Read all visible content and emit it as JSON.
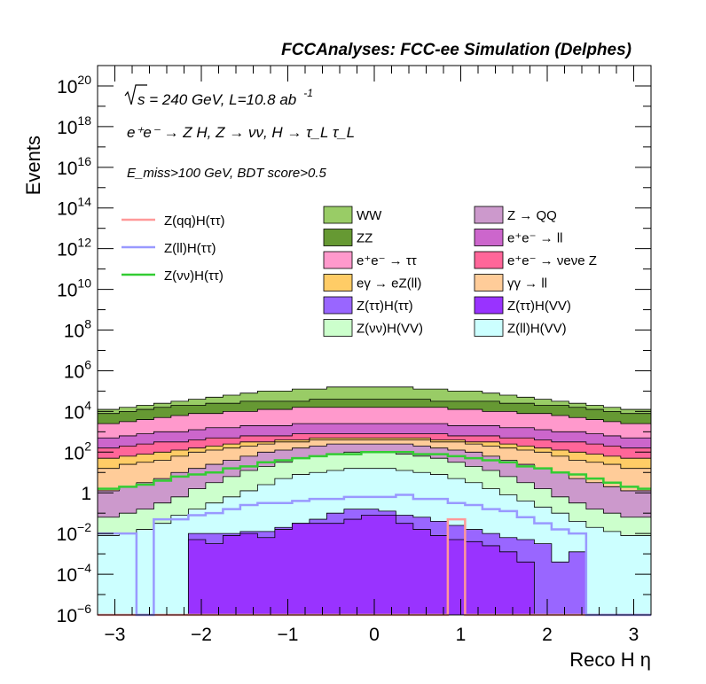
{
  "header": {
    "title": "FCCAnalyses: FCC-ee Simulation (Delphes)"
  },
  "annotations": {
    "line1_sqrt": "s",
    "line1_rest": " = 240 GeV, L=10.8 ab",
    "line1_sup": "-1",
    "line2": "e⁺e⁻ → Z H, Z → νν, H → τ_L τ_L",
    "line3": "E_miss>100 GeV, BDT score>0.5"
  },
  "colors": {
    "WW": "#99cc66",
    "ZZ": "#669933",
    "eeTauTau": "#ff99cc",
    "egamma": "#ffcc66",
    "ZtautauHtautau": "#9966ff",
    "ZnunuHVV": "#ccffcc",
    "ZQQ": "#cc99cc",
    "eell": "#cc66cc",
    "eenunuZ": "#ff6699",
    "gammagammall": "#ffcc99",
    "ZtautauHVV": "#9933ff",
    "ZllHVV": "#ccffff",
    "sig_qq": "#ff9999",
    "sig_ll": "#9999ff",
    "sig_nunu": "#33cc33"
  },
  "chart_data": {
    "type": "area",
    "title": "FCCAnalyses: FCC-ee Simulation (Delphes)",
    "xlabel": "Reco H η",
    "ylabel": "Events",
    "xlim": [
      -3.2,
      3.2
    ],
    "ylim": [
      1e-06,
      1e+21
    ],
    "yscale": "log",
    "grid": false,
    "legend": "top",
    "bin_edges": [
      -3.2,
      -2.95,
      -2.75,
      -2.55,
      -2.35,
      -2.15,
      -1.95,
      -1.75,
      -1.55,
      -1.35,
      -1.15,
      -0.95,
      -0.75,
      -0.55,
      -0.35,
      -0.15,
      0.05,
      0.25,
      0.45,
      0.65,
      0.85,
      1.05,
      1.25,
      1.45,
      1.65,
      1.85,
      2.05,
      2.25,
      2.45,
      2.65,
      2.85,
      3.05,
      3.2
    ],
    "x_ticks": [
      -3,
      -2,
      -1,
      0,
      1,
      2,
      3
    ],
    "x_tick_labels": [
      "−3",
      "−2",
      "−1",
      "0",
      "1",
      "2",
      "3"
    ],
    "y_ticks": [
      "1e-6",
      "1e-4",
      "1e-2",
      "1",
      "1e2",
      "1e4",
      "1e6",
      "1e8",
      "1e10",
      "1e12",
      "1e14",
      "1e16",
      "1e18",
      "1e20"
    ],
    "y_tick_labels": [
      {
        "base": "10",
        "exp": "−6"
      },
      {
        "base": "10",
        "exp": "−4"
      },
      {
        "base": "10",
        "exp": "−2"
      },
      {
        "base": "1",
        "exp": ""
      },
      {
        "base": "10",
        "exp": "2"
      },
      {
        "base": "10",
        "exp": "4"
      },
      {
        "base": "10",
        "exp": "6"
      },
      {
        "base": "10",
        "exp": "8"
      },
      {
        "base": "10",
        "exp": "10"
      },
      {
        "base": "10",
        "exp": "12"
      },
      {
        "base": "10",
        "exp": "14"
      },
      {
        "base": "10",
        "exp": "16"
      },
      {
        "base": "10",
        "exp": "18"
      },
      {
        "base": "10",
        "exp": "20"
      }
    ],
    "stack_order_bottom_to_top": [
      "Z(ττ)H(VV)",
      "Z(ττ)H(ττ)",
      "Z(ll)H(VV)",
      "Z(νν)H(VV)",
      "Z → QQ",
      "γγ → ll",
      "eγ → eZ(ll)",
      "e⁺e⁻ → νeνe Z",
      "e⁺e⁻ → ll",
      "e⁺e⁻ → ττ",
      "ZZ",
      "WW"
    ],
    "stack_cumulative_log10": [
      {
        "name": "Z(ττ)H(VV)",
        "color": "#9933ff",
        "values": [
          -6,
          -6,
          -6,
          -6,
          -6,
          -2.3,
          -2.5,
          -2.1,
          -2,
          -2.2,
          -1.8,
          -1.5,
          -1.5,
          -1.5,
          -1.3,
          -1.1,
          -1.1,
          -1.5,
          -1.8,
          -2.1,
          -2.3,
          -2.4,
          -2.6,
          -2.9,
          -3.4,
          -6,
          -6,
          -6,
          -6,
          -6,
          -6,
          -6
        ]
      },
      {
        "name": "Z(ττ)H(ττ)",
        "color": "#9966ff",
        "values": [
          -6,
          -6,
          -6,
          -6,
          -6,
          -2,
          -2,
          -2,
          -1.9,
          -1.9,
          -1.7,
          -1.5,
          -1.3,
          -1,
          -0.8,
          -0.8,
          -0.9,
          -1.1,
          -1.2,
          -1.4,
          -1.6,
          -1.8,
          -2,
          -2.2,
          -2.3,
          -2.5,
          -3.4,
          -2.9,
          -6,
          -6,
          -6,
          -6
        ]
      },
      {
        "name": "Z(ll)H(VV)",
        "color": "#ccffff",
        "values": [
          -2.1,
          -2,
          -1.8,
          -1.5,
          -1.1,
          -0.8,
          -0.5,
          -0.2,
          0.1,
          0.4,
          0.7,
          0.9,
          1,
          1.1,
          1.2,
          1.2,
          1.2,
          1.1,
          1,
          0.9,
          0.7,
          0.5,
          0.2,
          -0.1,
          -0.4,
          -0.7,
          -1,
          -1.4,
          -1.7,
          -1.9,
          -2.1,
          -2.1
        ]
      },
      {
        "name": "Z(νν)H(VV)",
        "color": "#ccffcc",
        "values": [
          -1.2,
          -1,
          -0.8,
          -0.5,
          -0.2,
          0.2,
          0.5,
          0.8,
          1.1,
          1.3,
          1.5,
          1.7,
          1.8,
          1.9,
          2,
          2,
          2,
          1.9,
          1.8,
          1.7,
          1.5,
          1.3,
          1.1,
          0.8,
          0.5,
          0.2,
          -0.2,
          -0.5,
          -0.8,
          -1,
          -1.2,
          -1.2
        ]
      },
      {
        "name": "Z → QQ",
        "color": "#cc99cc",
        "values": [
          0.1,
          0.3,
          0.5,
          0.7,
          1,
          1.2,
          1.4,
          1.6,
          1.8,
          2,
          2.1,
          2.2,
          2.3,
          2.4,
          2.4,
          2.4,
          2.4,
          2.4,
          2.3,
          2.2,
          2.1,
          2,
          1.8,
          1.6,
          1.4,
          1.2,
          1,
          0.7,
          0.5,
          0.3,
          0.1,
          0.1
        ]
      },
      {
        "name": "γγ → ll",
        "color": "#ffcc99",
        "values": [
          1.2,
          1.4,
          1.5,
          1.6,
          1.8,
          2,
          2.1,
          2.2,
          2.3,
          2.4,
          2.5,
          2.5,
          2.6,
          2.6,
          2.6,
          2.6,
          2.6,
          2.6,
          2.6,
          2.5,
          2.5,
          2.4,
          2.3,
          2.2,
          2.1,
          2,
          1.8,
          1.6,
          1.5,
          1.4,
          1.2,
          1.2
        ]
      },
      {
        "name": "eγ → eZ(ll)",
        "color": "#ffcc66",
        "values": [
          1.7,
          1.8,
          1.9,
          2,
          2.1,
          2.2,
          2.3,
          2.4,
          2.5,
          2.5,
          2.6,
          2.6,
          2.7,
          2.7,
          2.7,
          2.7,
          2.7,
          2.7,
          2.7,
          2.6,
          2.6,
          2.5,
          2.5,
          2.4,
          2.3,
          2.2,
          2.1,
          2,
          1.9,
          1.8,
          1.7,
          1.7
        ]
      },
      {
        "name": "e⁺e⁻ → νeνe Z",
        "color": "#ff6699",
        "values": [
          2.2,
          2.3,
          2.4,
          2.5,
          2.5,
          2.6,
          2.7,
          2.7,
          2.8,
          2.8,
          2.8,
          2.9,
          2.9,
          2.9,
          2.9,
          2.9,
          2.9,
          2.9,
          2.9,
          2.9,
          2.8,
          2.8,
          2.8,
          2.7,
          2.7,
          2.6,
          2.5,
          2.5,
          2.4,
          2.3,
          2.2,
          2.2
        ]
      },
      {
        "name": "e⁺e⁻ → ll",
        "color": "#cc66cc",
        "values": [
          2.7,
          2.8,
          2.9,
          3,
          3,
          3.1,
          3.2,
          3.2,
          3.3,
          3.3,
          3.3,
          3.4,
          3.4,
          3.4,
          3.4,
          3.4,
          3.4,
          3.4,
          3.4,
          3.4,
          3.3,
          3.3,
          3.3,
          3.2,
          3.2,
          3.1,
          3,
          3,
          2.9,
          2.8,
          2.7,
          2.7
        ]
      },
      {
        "name": "e⁺e⁻ → ττ",
        "color": "#ff99cc",
        "values": [
          3.4,
          3.5,
          3.6,
          3.7,
          3.8,
          3.9,
          3.9,
          4,
          4,
          4.1,
          4.1,
          4.2,
          4.2,
          4.2,
          4.2,
          4.2,
          4.2,
          4.2,
          4.2,
          4.2,
          4.1,
          4.1,
          4,
          4,
          3.9,
          3.9,
          3.8,
          3.7,
          3.6,
          3.5,
          3.4,
          3.4
        ]
      },
      {
        "name": "ZZ",
        "color": "#669933",
        "values": [
          3.9,
          4,
          4.1,
          4.2,
          4.3,
          4.3,
          4.4,
          4.4,
          4.5,
          4.5,
          4.5,
          4.5,
          4.6,
          4.6,
          4.6,
          4.6,
          4.6,
          4.6,
          4.6,
          4.5,
          4.5,
          4.5,
          4.5,
          4.4,
          4.4,
          4.3,
          4.3,
          4.2,
          4.1,
          4,
          3.9,
          3.9
        ]
      },
      {
        "name": "WW",
        "color": "#99cc66",
        "values": [
          4.1,
          4.2,
          4.3,
          4.4,
          4.5,
          4.6,
          4.7,
          4.8,
          4.9,
          5,
          5,
          5.1,
          5.1,
          5.2,
          5.2,
          5.2,
          5.2,
          5.2,
          5.1,
          5.1,
          5,
          5,
          4.9,
          4.8,
          4.7,
          4.6,
          4.5,
          4.4,
          4.3,
          4.2,
          4.1,
          4.1
        ]
      }
    ],
    "signal_lines_log10": [
      {
        "name": "Z(qq)H(ττ)",
        "color": "#ff9999",
        "values": [
          -6,
          -6,
          -6,
          -6,
          -6,
          -6,
          -6,
          -6,
          -6,
          -6,
          -6,
          -6,
          -6,
          -6,
          -6,
          -6,
          -6,
          -6,
          -6,
          -6,
          -1.3,
          -6,
          -6,
          -6,
          -6,
          -6,
          -6,
          -6,
          -6,
          -6,
          -6,
          -6
        ]
      },
      {
        "name": "Z(ll)H(ττ)",
        "color": "#9999ff",
        "values": [
          -2,
          -2,
          -6,
          -1.3,
          -1.3,
          -1.1,
          -1,
          -0.8,
          -0.6,
          -0.5,
          -0.5,
          -0.4,
          -0.3,
          -0.3,
          -0.2,
          -0.2,
          -0.2,
          -0.1,
          -0.3,
          -0.3,
          -0.5,
          -0.6,
          -0.8,
          -0.9,
          -1.2,
          -1.5,
          -1.8,
          -2,
          -6,
          -6,
          -6,
          -6
        ]
      },
      {
        "name": "Z(νν)H(ττ)",
        "color": "#33cc33",
        "values": [
          0.2,
          0.3,
          0.4,
          0.6,
          0.8,
          0.9,
          1,
          1.2,
          1.3,
          1.5,
          1.6,
          1.7,
          1.8,
          1.9,
          1.9,
          2,
          2,
          2,
          1.9,
          1.9,
          1.8,
          1.7,
          1.6,
          1.5,
          1.3,
          1.2,
          1,
          0.9,
          0.7,
          0.5,
          0.3,
          0.2
        ]
      }
    ],
    "legend_left": [
      {
        "label": "Z(qq)H(ττ)",
        "color": "#ff9999"
      },
      {
        "label": "Z(ll)H(ττ)",
        "color": "#9999ff"
      },
      {
        "label": "Z(νν)H(ττ)",
        "color": "#33cc33"
      }
    ],
    "legend_right": [
      {
        "label": "WW",
        "color": "#99cc66"
      },
      {
        "label": "Z → QQ",
        "color": "#cc99cc"
      },
      {
        "label": "ZZ",
        "color": "#669933"
      },
      {
        "label": "e⁺e⁻ → ll",
        "color": "#cc66cc"
      },
      {
        "label": "e⁺e⁻ → ττ",
        "color": "#ff99cc"
      },
      {
        "label": "e⁺e⁻ → νeνe Z",
        "color": "#ff6699"
      },
      {
        "label": "eγ → eZ(ll)",
        "color": "#ffcc66"
      },
      {
        "label": "γγ → ll",
        "color": "#ffcc99"
      },
      {
        "label": "Z(ττ)H(ττ)",
        "color": "#9966ff"
      },
      {
        "label": "Z(ττ)H(VV)",
        "color": "#9933ff"
      },
      {
        "label": "Z(νν)H(VV)",
        "color": "#ccffcc"
      },
      {
        "label": "Z(ll)H(VV)",
        "color": "#ccffff"
      }
    ]
  }
}
